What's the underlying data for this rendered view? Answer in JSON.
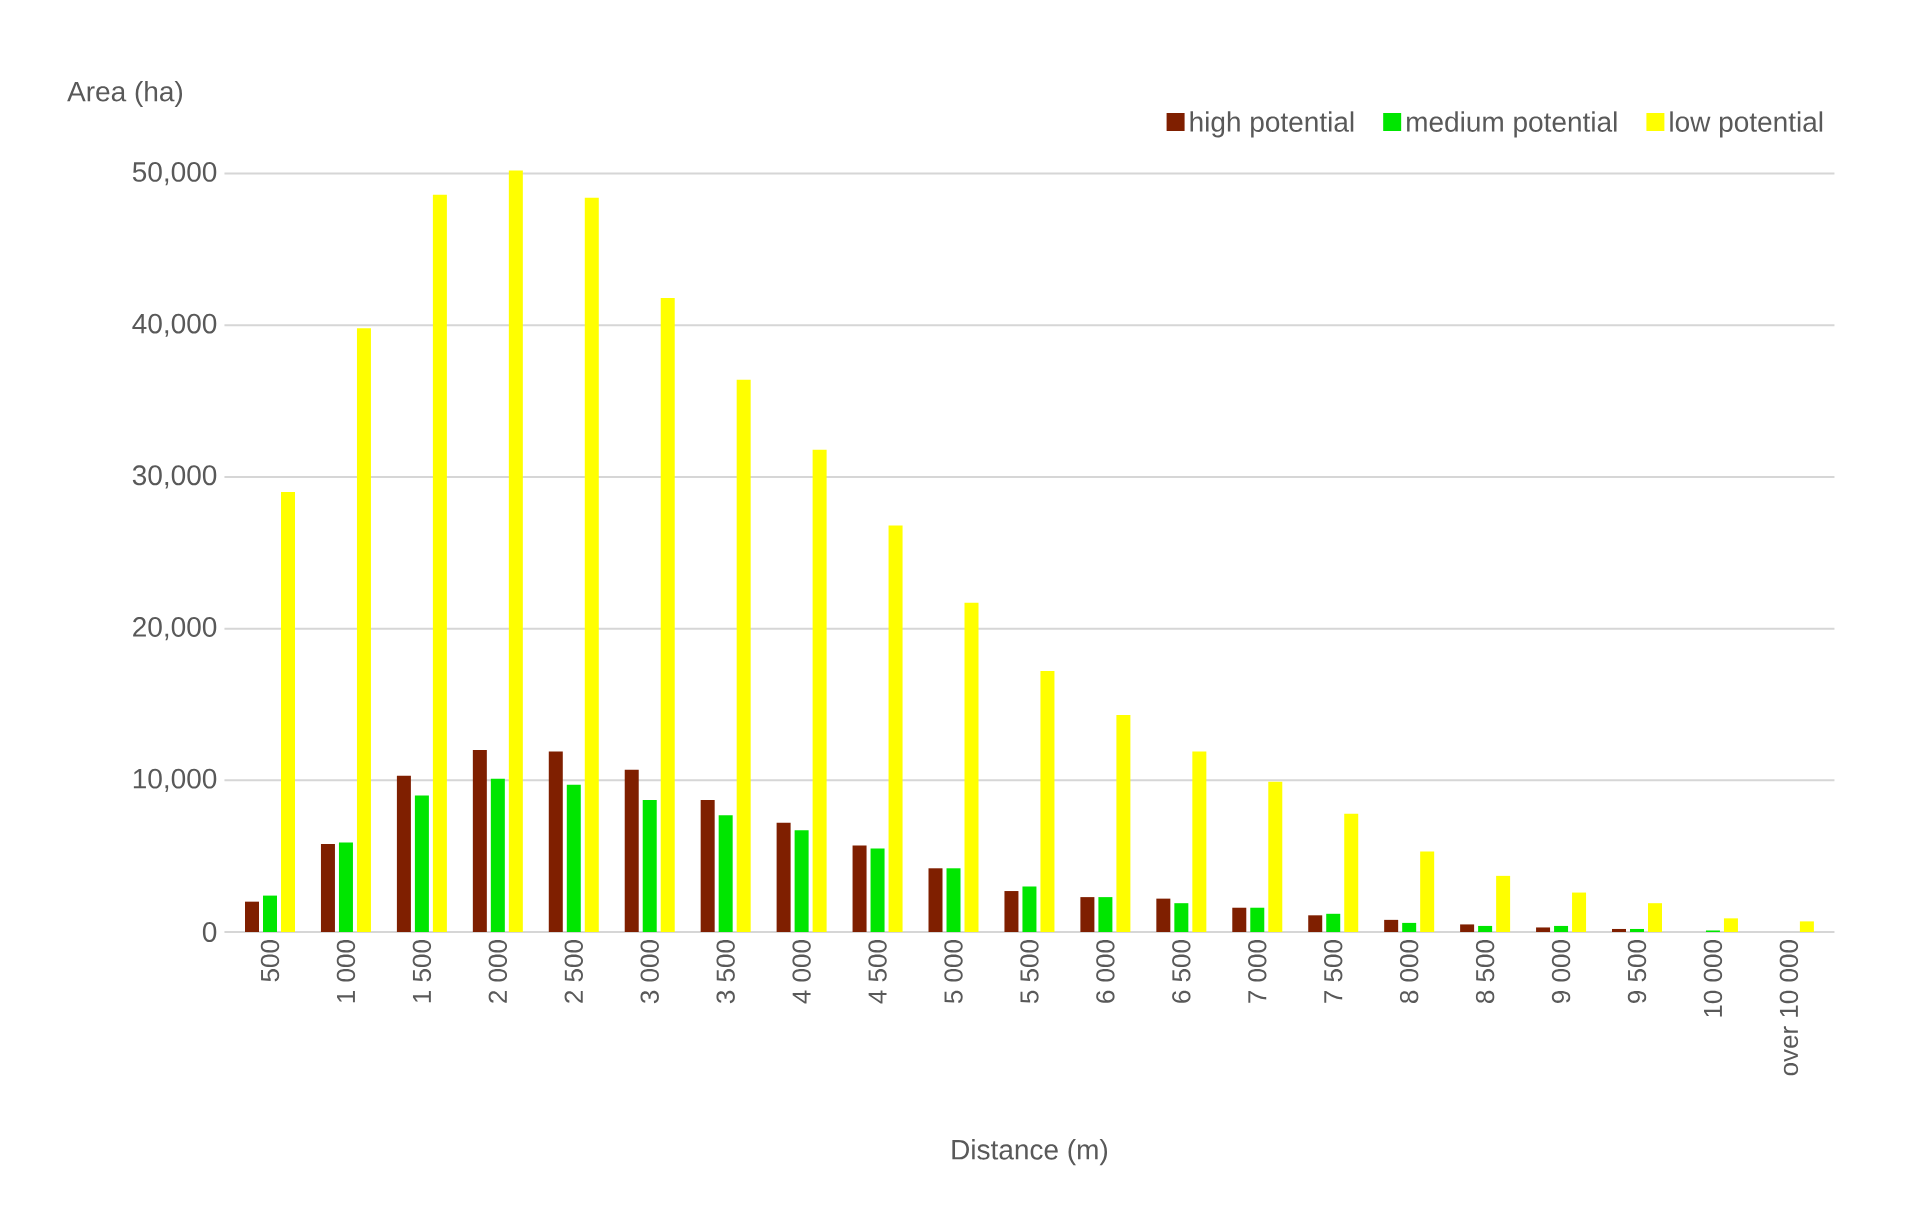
{
  "chart_data": {
    "type": "bar",
    "xlabel": "Distance (m)",
    "ylabel": "Area (ha)",
    "categories": [
      "500",
      "1 000",
      "1 500",
      "2 000",
      "2 500",
      "3 000",
      "3 500",
      "4 000",
      "4 500",
      "5 000",
      "5 500",
      "6 000",
      "6 500",
      "7 000",
      "7 500",
      "8 000",
      "8 500",
      "9 000",
      "9 500",
      "10 000",
      "over 10 000"
    ],
    "series": [
      {
        "name": "high potential",
        "color": "#7f1f00",
        "values": [
          2000,
          5800,
          10300,
          12000,
          11900,
          10700,
          8700,
          7200,
          5700,
          4200,
          2700,
          2300,
          2200,
          1600,
          1100,
          800,
          500,
          300,
          200,
          0,
          0
        ]
      },
      {
        "name": "medium potential",
        "color": "#00e600",
        "values": [
          2400,
          5900,
          9000,
          10100,
          9700,
          8700,
          7700,
          6700,
          5500,
          4200,
          3000,
          2300,
          1900,
          1600,
          1200,
          600,
          400,
          400,
          200,
          100,
          0
        ]
      },
      {
        "name": "low potential",
        "color": "#ffff00",
        "values": [
          29000,
          39800,
          48600,
          50200,
          48400,
          41800,
          36400,
          31800,
          26800,
          21700,
          17200,
          14300,
          11900,
          9900,
          7800,
          5300,
          3700,
          2600,
          1900,
          900,
          700
        ]
      }
    ],
    "ylim": [
      0,
      50500
    ],
    "yticks": [
      {
        "value": 0,
        "label": "0"
      },
      {
        "value": 10000,
        "label": "10,000"
      },
      {
        "value": 20000,
        "label": "20,000"
      },
      {
        "value": 30000,
        "label": "30,000"
      },
      {
        "value": 40000,
        "label": "40,000"
      },
      {
        "value": 50000,
        "label": "50,000"
      }
    ],
    "grid": "y",
    "legend": "top right"
  }
}
